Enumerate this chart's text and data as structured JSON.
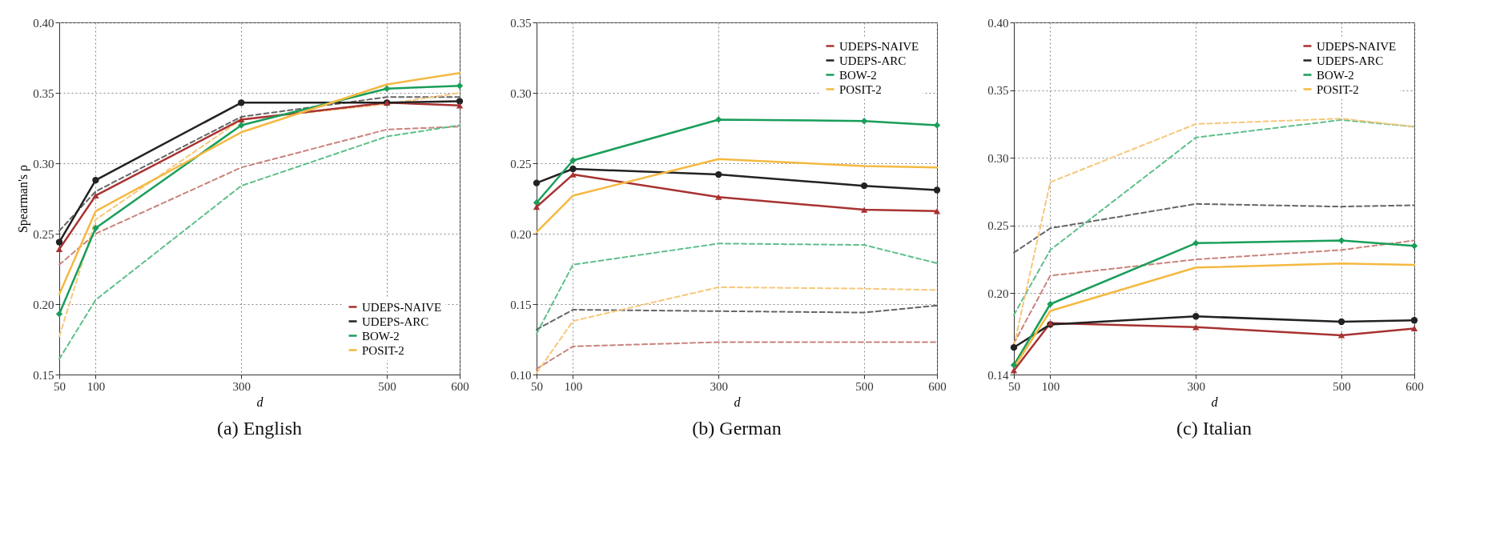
{
  "chart_data": [
    {
      "type": "line",
      "title": "(a) English",
      "xlabel": "d",
      "ylabel": "Spearman's ρ",
      "x": [
        50,
        100,
        300,
        500,
        600
      ],
      "xlim": [
        50,
        600
      ],
      "xticks": [
        50,
        100,
        300,
        500,
        600
      ],
      "ylim": [
        0.15,
        0.4
      ],
      "yticks": [
        0.15,
        {
          "value": 0.2,
          "label": "0.20"
        },
        0.25,
        {
          "value": 0.3,
          "label": "0.30"
        },
        0.35,
        {
          "value": 0.4,
          "label": "0.40"
        }
      ],
      "grid": true,
      "legend": "bottom right",
      "series": [
        {
          "name": "UDEPS-NAIVE",
          "color": "#a83232",
          "marker": "triangle",
          "line_style": "solid",
          "values": [
            0.239,
            0.277,
            0.331,
            0.343,
            0.341
          ]
        },
        {
          "name": "UDEPS-ARC",
          "color": "#222222",
          "marker": "circle",
          "line_style": "solid",
          "values": [
            0.244,
            0.288,
            0.343,
            0.343,
            0.344
          ]
        },
        {
          "name": "BOW-2",
          "color": "#1a9e5a",
          "marker": "diamond",
          "line_style": "solid",
          "values": [
            0.193,
            0.254,
            0.327,
            0.353,
            0.355
          ]
        },
        {
          "name": "POSIT-2",
          "color": "#f4b942",
          "marker": "none",
          "line_style": "solid",
          "values": [
            0.207,
            0.266,
            0.322,
            0.356,
            0.364
          ]
        },
        {
          "color": "#c9847c",
          "marker": "none",
          "line_style": "dashed",
          "values": [
            0.228,
            0.25,
            0.297,
            0.324,
            0.326
          ]
        },
        {
          "color": "#666666",
          "marker": "none",
          "line_style": "dashed",
          "values": [
            0.252,
            0.28,
            0.333,
            0.347,
            0.347
          ]
        },
        {
          "color": "#5fbf8a",
          "marker": "none",
          "line_style": "dashed",
          "values": [
            0.161,
            0.203,
            0.284,
            0.319,
            0.327
          ]
        },
        {
          "color": "#f7c77a",
          "marker": "none",
          "line_style": "dashed",
          "values": [
            0.177,
            0.26,
            0.331,
            0.342,
            0.35
          ]
        }
      ]
    },
    {
      "type": "line",
      "title": "(b) German",
      "xlabel": "d",
      "x": [
        50,
        100,
        300,
        500,
        600
      ],
      "xlim": [
        50,
        600
      ],
      "xticks": [
        50,
        100,
        300,
        500,
        600
      ],
      "ylim": [
        0.1,
        0.35
      ],
      "yticks": [
        {
          "value": 0.1,
          "label": "0.10"
        },
        0.15,
        {
          "value": 0.2,
          "label": "0.20"
        },
        0.25,
        {
          "value": 0.3,
          "label": "0.30"
        },
        0.35
      ],
      "grid": true,
      "legend": "top right",
      "series": [
        {
          "name": "UDEPS-NAIVE",
          "color": "#a83232",
          "marker": "triangle",
          "line_style": "solid",
          "values": [
            0.219,
            0.242,
            0.226,
            0.217,
            0.216
          ]
        },
        {
          "name": "UDEPS-ARC",
          "color": "#222222",
          "marker": "circle",
          "line_style": "solid",
          "values": [
            0.236,
            0.246,
            0.242,
            0.234,
            0.231
          ]
        },
        {
          "name": "BOW-2",
          "color": "#1a9e5a",
          "marker": "diamond",
          "line_style": "solid",
          "values": [
            0.222,
            0.252,
            0.281,
            0.28,
            0.277
          ]
        },
        {
          "name": "POSIT-2",
          "color": "#f4b942",
          "marker": "none",
          "line_style": "solid",
          "values": [
            0.201,
            0.227,
            0.253,
            0.248,
            0.247
          ]
        },
        {
          "color": "#c9847c",
          "marker": "none",
          "line_style": "dashed",
          "values": [
            0.104,
            0.12,
            0.123,
            0.123,
            0.123
          ]
        },
        {
          "color": "#666666",
          "marker": "none",
          "line_style": "dashed",
          "values": [
            0.132,
            0.146,
            0.145,
            0.144,
            0.149
          ]
        },
        {
          "color": "#5fbf8a",
          "marker": "none",
          "line_style": "dashed",
          "values": [
            0.129,
            0.178,
            0.193,
            0.192,
            0.179
          ]
        },
        {
          "color": "#f7c77a",
          "marker": "none",
          "line_style": "dashed",
          "values": [
            0.101,
            0.138,
            0.162,
            0.161,
            0.16
          ]
        }
      ]
    },
    {
      "type": "line",
      "title": "(c) Italian",
      "xlabel": "d",
      "x": [
        50,
        100,
        300,
        500,
        600
      ],
      "xlim": [
        50,
        600
      ],
      "xticks": [
        50,
        100,
        300,
        500,
        600
      ],
      "ylim": [
        0.14,
        0.4
      ],
      "yticks": [
        0.14,
        {
          "value": 0.2,
          "label": "0.20"
        },
        0.25,
        {
          "value": 0.3,
          "label": "0.30"
        },
        0.35,
        {
          "value": 0.4,
          "label": "0.40"
        }
      ],
      "grid": true,
      "legend": "top right",
      "series": [
        {
          "name": "UDEPS-NAIVE",
          "color": "#a83232",
          "marker": "triangle",
          "line_style": "solid",
          "values": [
            0.143,
            0.178,
            0.175,
            0.169,
            0.174
          ]
        },
        {
          "name": "UDEPS-ARC",
          "color": "#222222",
          "marker": "circle",
          "line_style": "solid",
          "values": [
            0.16,
            0.177,
            0.183,
            0.179,
            0.18
          ]
        },
        {
          "name": "BOW-2",
          "color": "#1a9e5a",
          "marker": "diamond",
          "line_style": "solid",
          "values": [
            0.147,
            0.192,
            0.237,
            0.239,
            0.235
          ]
        },
        {
          "name": "POSIT-2",
          "color": "#f4b942",
          "marker": "none",
          "line_style": "solid",
          "values": [
            0.145,
            0.187,
            0.219,
            0.222,
            0.221
          ]
        },
        {
          "color": "#c9847c",
          "marker": "none",
          "line_style": "dashed",
          "values": [
            0.163,
            0.213,
            0.225,
            0.232,
            0.239
          ]
        },
        {
          "color": "#666666",
          "marker": "none",
          "line_style": "dashed",
          "values": [
            0.23,
            0.248,
            0.266,
            0.264,
            0.265
          ]
        },
        {
          "color": "#5fbf8a",
          "marker": "none",
          "line_style": "dashed",
          "values": [
            0.184,
            0.232,
            0.315,
            0.328,
            0.323
          ]
        },
        {
          "color": "#f7c77a",
          "marker": "none",
          "line_style": "dashed",
          "values": [
            0.161,
            0.282,
            0.325,
            0.329,
            0.323
          ]
        }
      ]
    }
  ]
}
